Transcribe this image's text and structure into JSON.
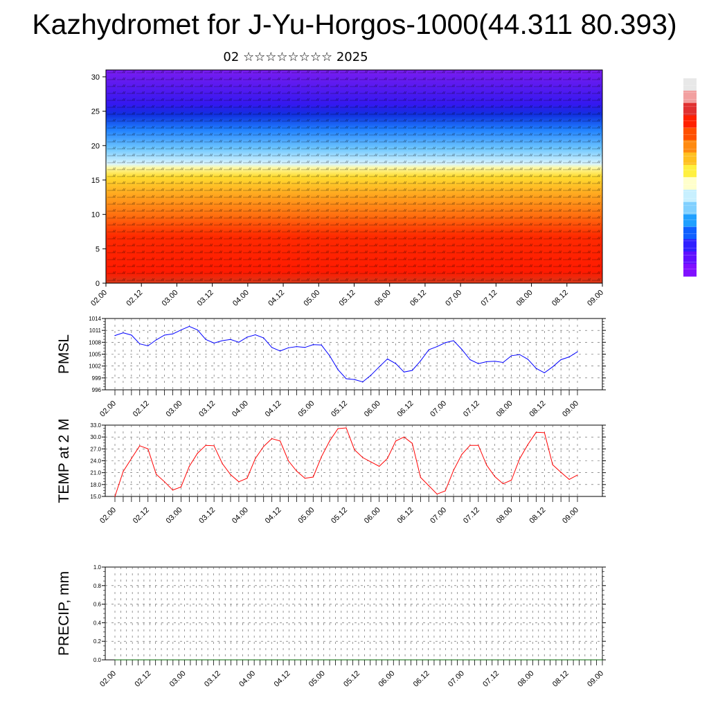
{
  "title": "Kazhydromet for J-Yu-Horgos-1000(44.311 80.393)",
  "subtitle": "02 ☆☆☆☆☆☆☆☆ 2025",
  "x_ticks": [
    "02.00",
    "02.12",
    "03.00",
    "03.12",
    "04.00",
    "04.12",
    "05.00",
    "05.12",
    "06.00",
    "06.12",
    "07.00",
    "07.12",
    "08.00",
    "08.12",
    "09.00"
  ],
  "colors": {
    "pmsl": "#0000ff",
    "temp": "#ff0000",
    "precip": "#006400",
    "axes": "#000000"
  },
  "colorbar": {
    "colors": [
      "#e8e8e8",
      "#f2a0a0",
      "#e03030",
      "#ff2000",
      "#ff5000",
      "#ff8a10",
      "#ffc020",
      "#fff040",
      "#ffffcc",
      "#c8f0ff",
      "#80d0ff",
      "#20a0ff",
      "#1060ff",
      "#3020ff",
      "#6010ff",
      "#8010ff"
    ]
  },
  "chart_data": [
    {
      "type": "heatmap",
      "title": "Kazhydromet for J-Yu-Horgos-1000(44.311 80.393)",
      "subtitle": "02 ☆☆☆☆☆☆☆☆ 2025",
      "xlabel": "",
      "ylabel": "",
      "x_ticks": [
        "02.00",
        "02.12",
        "03.00",
        "03.12",
        "04.00",
        "04.12",
        "05.00",
        "05.12",
        "06.00",
        "06.12",
        "07.00",
        "07.12",
        "08.00",
        "08.12",
        "09.00"
      ],
      "y_ticks": [
        0,
        5,
        10,
        15,
        20,
        25,
        30
      ],
      "ylim": [
        0,
        31
      ],
      "note_bands": [
        {
          "from": 0,
          "to": 8,
          "color": "red"
        },
        {
          "from": 8,
          "to": 12,
          "color": "orange"
        },
        {
          "from": 12,
          "to": 16,
          "color": "yellow"
        },
        {
          "from": 16,
          "to": 18,
          "color": "light blue"
        },
        {
          "from": 18,
          "to": 23,
          "color": "blue"
        },
        {
          "from": 23,
          "to": 26,
          "color": "dark blue"
        },
        {
          "from": 26,
          "to": 31,
          "color": "violet"
        }
      ],
      "overlay": "wind barbs"
    },
    {
      "type": "line",
      "ylabel": "PMSL",
      "ylim": [
        996,
        1014
      ],
      "y_ticks": [
        996,
        999,
        1002,
        1005,
        1008,
        1011,
        1014
      ],
      "x_ticks": [
        "02.00",
        "02.12",
        "03.00",
        "03.12",
        "04.00",
        "04.12",
        "05.00",
        "05.12",
        "06.00",
        "06.12",
        "07.00",
        "07.12",
        "08.00",
        "08.12",
        "09.00"
      ],
      "series": [
        {
          "values": [
            1009.7,
            1010.4,
            1009.8,
            1007.6,
            1007.1,
            1008.6,
            1009.8,
            1010.1,
            1011.1,
            1012.0,
            1011.1,
            1008.7,
            1007.8,
            1008.4,
            1008.7,
            1008.0,
            1009.3,
            1009.9,
            1009.1,
            1006.7,
            1005.8,
            1006.6,
            1006.9,
            1006.7,
            1007.4,
            1007.3,
            1004.6,
            1001.1,
            998.8,
            998.6,
            998.0,
            999.7,
            1001.8,
            1003.8,
            1002.6,
            1000.5,
            1000.9,
            1003.3,
            1006.1,
            1006.9,
            1007.9,
            1008.4,
            1006.2,
            1003.6,
            1002.6,
            1003.1,
            1003.2,
            1002.9,
            1004.6,
            1004.9,
            1003.7,
            1001.4,
            1000.3,
            1001.8,
            1003.6,
            1004.3,
            1005.6
          ]
        }
      ]
    },
    {
      "type": "line",
      "ylabel": "TEMP at 2 M",
      "ylim": [
        15,
        33
      ],
      "y_ticks": [
        "15.0",
        "18.0",
        "21.0",
        "24.0",
        "27.0",
        "30.0",
        "33.0"
      ],
      "x_ticks": [
        "02.00",
        "02.12",
        "03.00",
        "03.12",
        "04.00",
        "04.12",
        "05.00",
        "05.12",
        "06.00",
        "06.12",
        "07.00",
        "07.12",
        "08.00",
        "08.12",
        "09.00"
      ],
      "series": [
        {
          "values": [
            15.0,
            21.3,
            24.6,
            27.8,
            27.0,
            20.6,
            18.7,
            16.6,
            17.4,
            22.6,
            25.9,
            27.9,
            27.8,
            23.3,
            20.5,
            18.7,
            19.6,
            24.6,
            27.6,
            29.6,
            29.0,
            24.0,
            21.4,
            19.6,
            19.9,
            25.0,
            29.0,
            32.1,
            32.3,
            26.8,
            24.8,
            23.7,
            22.6,
            24.6,
            29.0,
            30.0,
            28.4,
            19.8,
            17.7,
            15.6,
            16.4,
            21.6,
            25.6,
            27.9,
            27.9,
            22.9,
            20.0,
            18.2,
            19.1,
            24.5,
            28.1,
            31.2,
            31.1,
            23.0,
            21.1,
            19.3,
            20.4
          ]
        }
      ]
    },
    {
      "type": "line",
      "ylabel": "PRECIP, mm",
      "ylim": [
        0,
        1
      ],
      "y_ticks": [
        "0.0",
        "0.2",
        "0.4",
        "0.6",
        "0.8",
        "1.0"
      ],
      "x_ticks": [
        "02.00",
        "02.12",
        "03.00",
        "03.12",
        "04.00",
        "04.12",
        "05.00",
        "05.12",
        "06.00",
        "06.12",
        "07.00",
        "07.12",
        "08.00",
        "08.12",
        "09.00"
      ],
      "series": [
        {
          "values": [
            0,
            0,
            0,
            0,
            0,
            0,
            0,
            0,
            0,
            0,
            0,
            0,
            0,
            0,
            0,
            0,
            0,
            0,
            0,
            0,
            0,
            0,
            0,
            0,
            0,
            0,
            0,
            0,
            0,
            0,
            0,
            0,
            0,
            0,
            0,
            0,
            0,
            0,
            0,
            0,
            0,
            0,
            0,
            0,
            0,
            0,
            0,
            0,
            0,
            0,
            0,
            0,
            0,
            0,
            0,
            0,
            0,
            0,
            0,
            0,
            0,
            0,
            0,
            0,
            0,
            0,
            0,
            0,
            0,
            0,
            0,
            0,
            0,
            0,
            0,
            0,
            0,
            0,
            0,
            0,
            0,
            0,
            0,
            0,
            0
          ]
        }
      ]
    }
  ]
}
